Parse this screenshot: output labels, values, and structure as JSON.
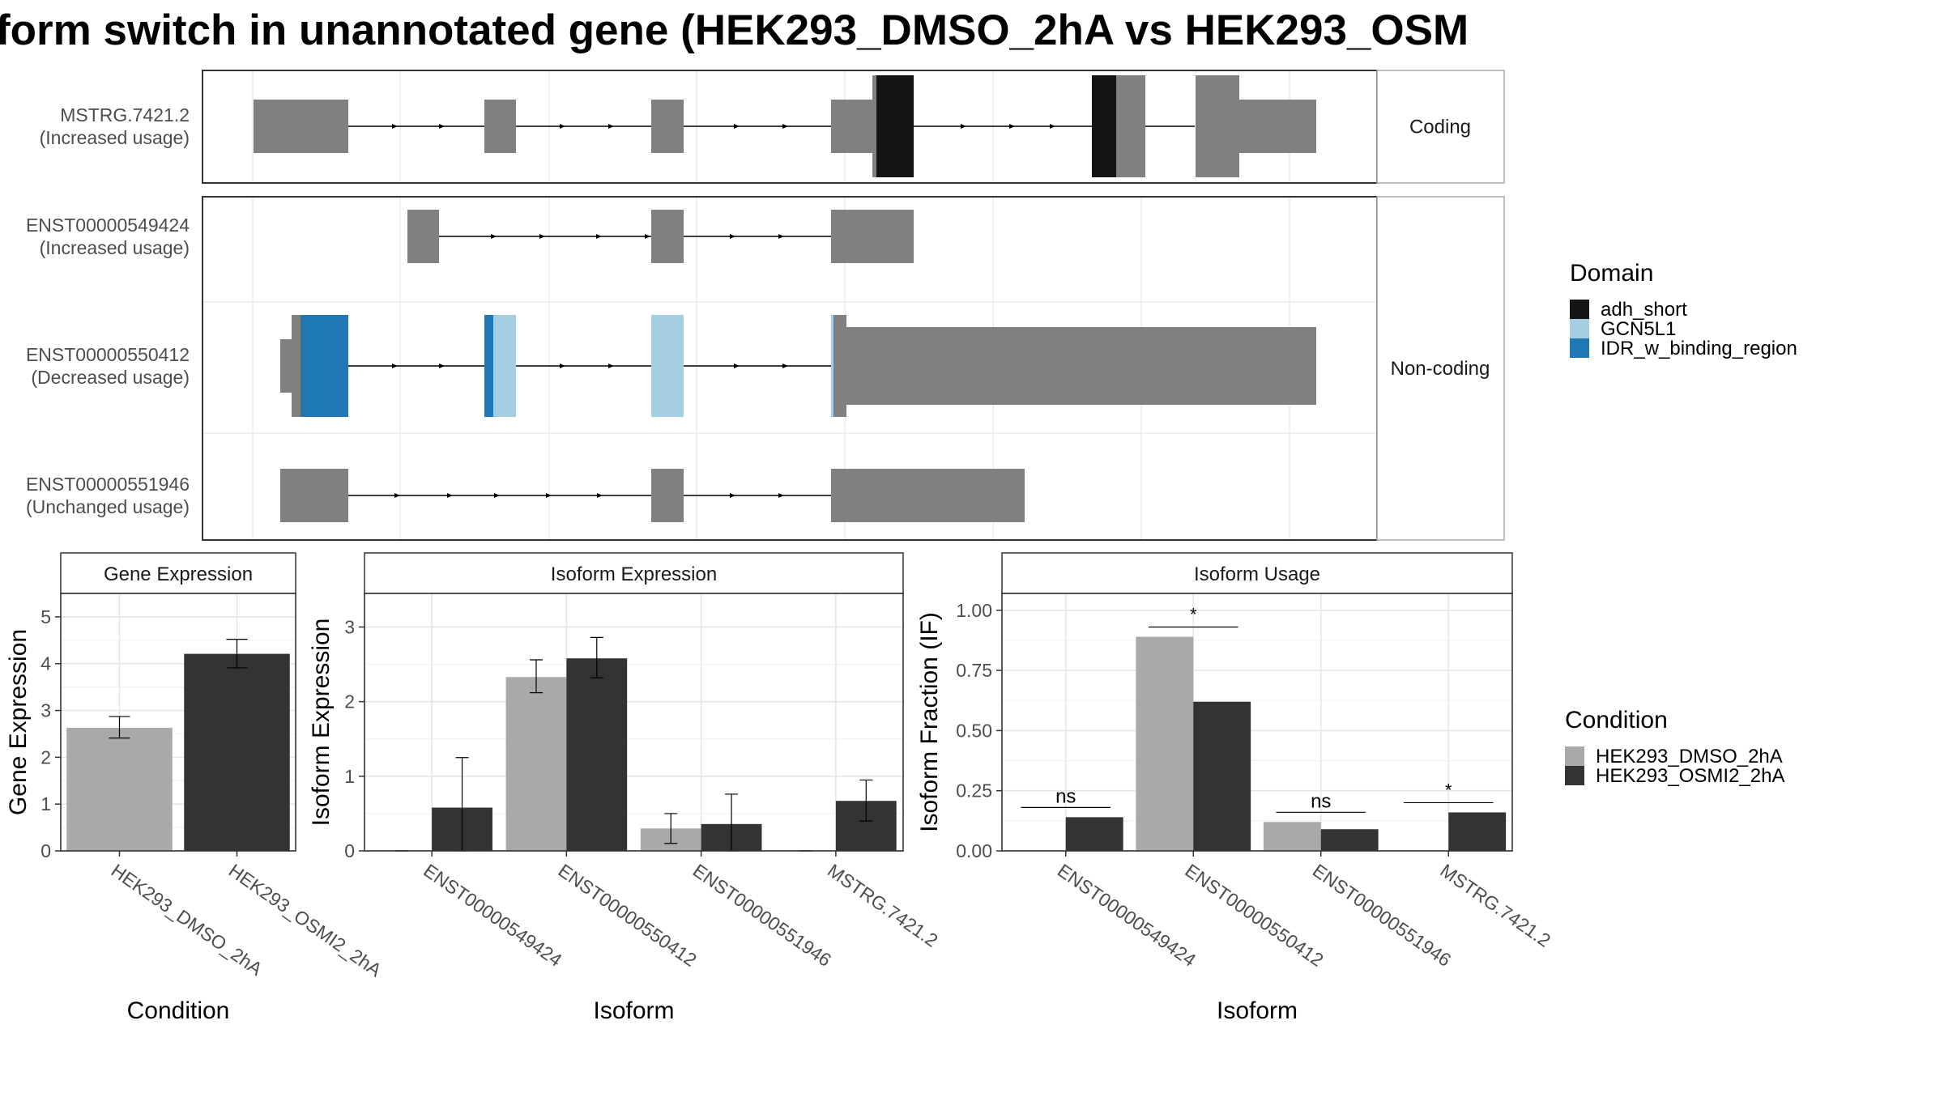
{
  "title": "form switch in unannotated gene (HEK293_DMSO_2hA vs HEK293_OSM",
  "chart_data": [
    {
      "type": "gene_structure",
      "panels": [
        {
          "strip": "Coding",
          "transcripts": [
            {
              "id": "MSTRG.7421.2",
              "usage": "(Increased usage)"
            }
          ]
        },
        {
          "strip": "Non-coding",
          "transcripts": [
            {
              "id": "ENST00000549424",
              "usage": "(Increased usage)"
            },
            {
              "id": "ENST00000550412",
              "usage": "(Decreased usage)"
            },
            {
              "id": "ENST00000551946",
              "usage": "(Unchanged usage)"
            }
          ]
        }
      ],
      "legend": {
        "title": "Domain",
        "position": "right",
        "items": [
          {
            "label": "adh_short",
            "color": "#151515"
          },
          {
            "label": "GCN5L1",
            "color": "#a6cee3"
          },
          {
            "label": "IDR_w_binding_region",
            "color": "#1f78b4"
          }
        ]
      },
      "colors": {
        "exon": "#808080",
        "intron": "#000000"
      }
    },
    {
      "type": "bar",
      "strip": "Gene Expression",
      "xlabel": "Condition",
      "ylabel": "Gene Expression",
      "categories": [
        "HEK293_DMSO_2hA",
        "HEK293_OSMI2_2hA"
      ],
      "values": [
        2.63,
        4.21
      ],
      "error": [
        [
          2.41,
          2.87
        ],
        [
          3.91,
          4.52
        ]
      ],
      "ylim": [
        0,
        5.5
      ],
      "yticks": [
        0,
        1,
        2,
        3,
        4,
        5
      ],
      "grid": true
    },
    {
      "type": "bar",
      "strip": "Isoform Expression",
      "xlabel": "Isoform",
      "ylabel": "Isoform Expression",
      "categories": [
        "ENST00000549424",
        "ENST00000550412",
        "ENST00000551946",
        "MSTRG.7421.2"
      ],
      "series": [
        {
          "name": "HEK293_DMSO_2hA",
          "values": [
            0.0,
            2.33,
            0.3,
            0.0
          ],
          "error": [
            [
              0.0,
              0.0
            ],
            [
              2.12,
              2.56
            ],
            [
              0.1,
              0.5
            ],
            [
              0.0,
              0.0
            ]
          ]
        },
        {
          "name": "HEK293_OSMI2_2hA",
          "values": [
            0.58,
            2.58,
            0.36,
            0.67
          ],
          "error": [
            [
              0.0,
              1.25
            ],
            [
              2.32,
              2.86
            ],
            [
              0.0,
              0.76
            ],
            [
              0.4,
              0.95
            ]
          ]
        }
      ],
      "ylim": [
        0,
        3.45
      ],
      "yticks": [
        0,
        1,
        2,
        3
      ],
      "grid": true
    },
    {
      "type": "bar",
      "strip": "Isoform Usage",
      "xlabel": "Isoform",
      "ylabel": "Isoform Fraction (IF)",
      "categories": [
        "ENST00000549424",
        "ENST00000550412",
        "ENST00000551946",
        "MSTRG.7421.2"
      ],
      "series": [
        {
          "name": "HEK293_DMSO_2hA",
          "values": [
            0.0,
            0.89,
            0.12,
            0.0
          ]
        },
        {
          "name": "HEK293_OSMI2_2hA",
          "values": [
            0.14,
            0.62,
            0.09,
            0.16
          ]
        }
      ],
      "annotations": [
        "ns",
        "*",
        "ns",
        "*"
      ],
      "ylim": [
        0,
        1.07
      ],
      "yticks": [
        "0.00",
        "0.25",
        "0.50",
        "0.75",
        "1.00"
      ],
      "grid": true,
      "legend": {
        "title": "Condition",
        "position": "right",
        "items": [
          {
            "label": "HEK293_DMSO_2hA",
            "color": "#a9a9a9"
          },
          {
            "label": "HEK293_OSMI2_2hA",
            "color": "#333333"
          }
        ]
      }
    }
  ]
}
